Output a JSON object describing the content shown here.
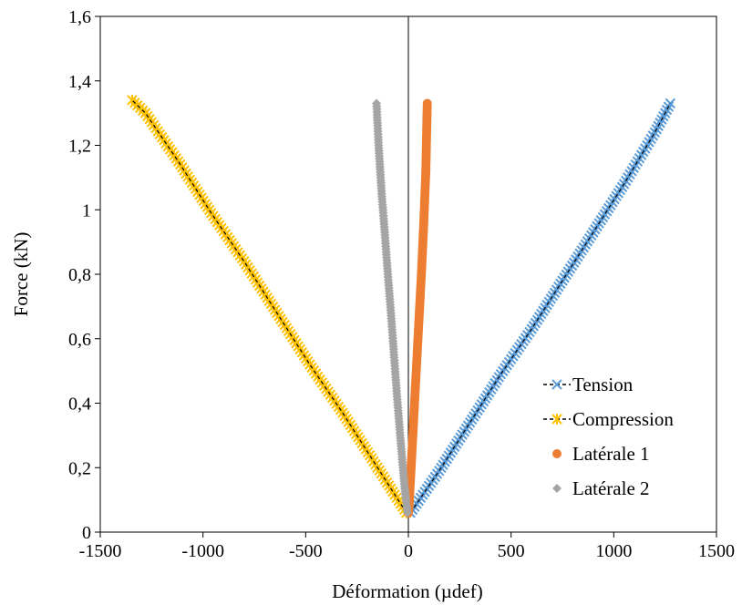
{
  "chart_data": {
    "type": "scatter",
    "title": "",
    "xlabel": "Déformation (µdef)",
    "ylabel": "Force (kN)",
    "xlim": [
      -1500,
      1500
    ],
    "ylim": [
      0,
      1.6
    ],
    "x_ticks": [
      -1500,
      -1000,
      -500,
      0,
      500,
      1000,
      1500
    ],
    "x_tick_labels": [
      "-1500",
      "-1000",
      "-500",
      "0",
      "500",
      "1000",
      "1500"
    ],
    "y_ticks": [
      0,
      0.2,
      0.4,
      0.6,
      0.8,
      1.0,
      1.2,
      1.4,
      1.6
    ],
    "y_tick_labels": [
      "0",
      "0,2",
      "0,4",
      "0,6",
      "0,8",
      "1",
      "1,2",
      "1,4",
      "1,6"
    ],
    "grid": false,
    "legend_position": "bottom-right",
    "series": [
      {
        "name": "Tension",
        "marker": "x",
        "color": "#5B9BD5",
        "line_color": "#000000",
        "line_style": "dashed",
        "x": [
          10,
          150,
          300,
          450,
          600,
          750,
          900,
          1050,
          1200,
          1275
        ],
        "y": [
          0.06,
          0.19,
          0.34,
          0.49,
          0.63,
          0.78,
          0.93,
          1.08,
          1.24,
          1.33
        ]
      },
      {
        "name": "Compression",
        "marker": "star",
        "color": "#FFC000",
        "line_color": "#000000",
        "line_style": "dashed",
        "x": [
          -10,
          -160,
          -320,
          -480,
          -640,
          -800,
          -960,
          -1120,
          -1280,
          -1345
        ],
        "y": [
          0.06,
          0.21,
          0.37,
          0.52,
          0.68,
          0.84,
          0.99,
          1.15,
          1.3,
          1.34
        ]
      },
      {
        "name": "Latérale 1",
        "marker": "circle",
        "color": "#ED7D31",
        "x": [
          0,
          5,
          15,
          25,
          35,
          45,
          55,
          65,
          75,
          85,
          92
        ],
        "y": [
          0.06,
          0.1,
          0.22,
          0.34,
          0.46,
          0.58,
          0.7,
          0.82,
          0.96,
          1.12,
          1.33
        ]
      },
      {
        "name": "Latérale 2",
        "marker": "diamond",
        "color": "#A5A5A5",
        "x": [
          -5,
          -20,
          -40,
          -55,
          -70,
          -85,
          -100,
          -115,
          -130,
          -145,
          -155
        ],
        "y": [
          0.06,
          0.15,
          0.3,
          0.42,
          0.55,
          0.68,
          0.8,
          0.93,
          1.05,
          1.2,
          1.33
        ]
      }
    ]
  }
}
